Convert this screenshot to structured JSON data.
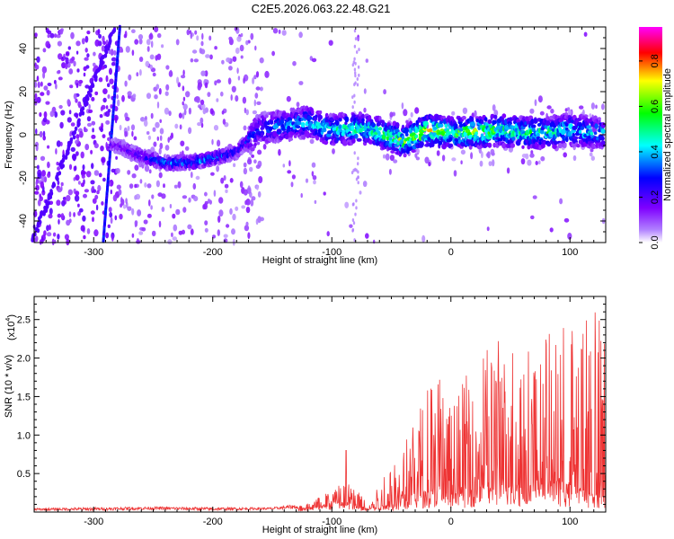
{
  "title": "C2E5.2026.063.22.48.G21",
  "chart_data": [
    {
      "type": "heatmap",
      "name": "spectrogram",
      "xlabel": "Height of straight line (km)",
      "ylabel": "Frequency (Hz)",
      "xlim": [
        -350,
        130
      ],
      "ylim": [
        -50,
        50
      ],
      "xticks": [
        -300,
        -200,
        -100,
        0,
        100
      ],
      "xtick_labels": [
        "-300",
        "-200",
        "-100",
        "0",
        "100"
      ],
      "yticks": [
        -40,
        -20,
        0,
        20,
        40
      ],
      "ytick_labels": [
        "-40",
        "-20",
        "0",
        "20",
        "40"
      ],
      "colorbar": {
        "label": "Normalized spectral amplitude",
        "range": [
          0,
          0.95
        ],
        "ticks": [
          0.0,
          0.2,
          0.4,
          0.6,
          0.8
        ],
        "tick_labels": [
          "0.0",
          "0.2",
          "0.4",
          "0.6",
          "0.8"
        ],
        "colors": [
          "#ffffff",
          "#7f00ff",
          "#0000ff",
          "#00ffff",
          "#00ff00",
          "#ffff00",
          "#ff0000",
          "#ff00ff"
        ]
      },
      "ridge": {
        "x": [
          -280,
          -260,
          -240,
          -220,
          -200,
          -180,
          -160,
          -140,
          -120,
          -100,
          -80,
          -60,
          -40,
          -20,
          0,
          20,
          40,
          60,
          80,
          100,
          125
        ],
        "frequency": [
          -5,
          -10,
          -13,
          -13,
          -11,
          -8,
          3,
          4,
          6,
          2,
          3,
          1,
          -3,
          2,
          1,
          1,
          2,
          1,
          1,
          2,
          1
        ],
        "amplitude": [
          0.2,
          0.3,
          0.4,
          0.4,
          0.4,
          0.3,
          0.35,
          0.4,
          0.45,
          0.5,
          0.55,
          0.55,
          0.65,
          0.75,
          0.6,
          0.7,
          0.6,
          0.55,
          0.55,
          0.5,
          0.45
        ]
      }
    },
    {
      "type": "line",
      "name": "snr",
      "xlabel": "Height of straight line (km)",
      "ylabel": "SNR (10 * v/v)",
      "yscale_label": "(x10",
      "yscale_exponent": "4",
      "xlim": [
        -350,
        130
      ],
      "ylim": [
        0,
        2.8
      ],
      "xticks": [
        -300,
        -200,
        -100,
        0,
        100
      ],
      "xtick_labels": [
        "-300",
        "-200",
        "-100",
        "0",
        "100"
      ],
      "yticks": [
        0.5,
        1.0,
        1.5,
        2.0,
        2.5
      ],
      "ytick_labels": [
        "0.5",
        "1.0",
        "1.5",
        "2.0",
        "2.5"
      ],
      "color": "#ee3333",
      "envelope": {
        "x": [
          -350,
          -300,
          -250,
          -200,
          -150,
          -120,
          -100,
          -90,
          -80,
          -70,
          -60,
          -50,
          -40,
          -30,
          -20,
          -10,
          0,
          20,
          40,
          60,
          80,
          100,
          125
        ],
        "low": [
          0.02,
          0.02,
          0.03,
          0.02,
          0.03,
          0.05,
          0.1,
          0.12,
          0.08,
          0.05,
          0.06,
          0.1,
          0.15,
          0.2,
          0.25,
          0.3,
          0.2,
          0.3,
          0.4,
          0.3,
          0.4,
          0.3,
          0.2
        ],
        "high": [
          0.05,
          0.06,
          0.07,
          0.06,
          0.06,
          0.12,
          0.3,
          0.45,
          0.35,
          0.15,
          0.4,
          0.7,
          0.9,
          1.2,
          1.7,
          1.9,
          1.4,
          2.0,
          2.3,
          2.2,
          2.3,
          2.6,
          2.7
        ]
      },
      "annotation_peak": {
        "x": -88,
        "y": 0.8
      }
    }
  ]
}
